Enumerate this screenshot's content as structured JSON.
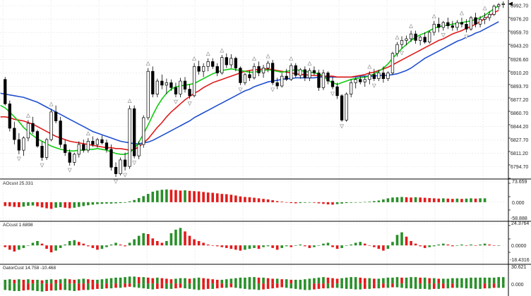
{
  "colors": {
    "background": "#ffffff",
    "grid": "#e3e3e3",
    "border": "#000000",
    "bull_candle": "#ffffff",
    "bear_candle": "#000000",
    "alligator_jaw": "#1f4fcf",
    "alligator_teeth": "#e01b1b",
    "alligator_lips": "#12cc12",
    "hist_up": "#2a8f2a",
    "hist_down": "#e21b1b",
    "fractal_marker": "#9a9a9a",
    "last_price_marker": "#000000"
  },
  "main_pane": {
    "price_ticks": [
      "6992.70",
      "6976.20",
      "6959.70",
      "6943.20",
      "6926.60",
      "6910.20",
      "6893.70",
      "6877.20",
      "6860.70",
      "6844.20",
      "6827.70",
      "6811.20",
      "6794.70"
    ],
    "price_range": [
      6783,
      6998
    ],
    "candles": [
      [
        6902,
        6905,
        6870,
        6872
      ],
      [
        6872,
        6876,
        6838,
        6842
      ],
      [
        6842,
        6850,
        6822,
        6828
      ],
      [
        6828,
        6836,
        6810,
        6815
      ],
      [
        6815,
        6832,
        6808,
        6830
      ],
      [
        6830,
        6852,
        6826,
        6848
      ],
      [
        6848,
        6856,
        6835,
        6838
      ],
      [
        6838,
        6840,
        6818,
        6820
      ],
      [
        6820,
        6826,
        6802,
        6806
      ],
      [
        6806,
        6830,
        6803,
        6828
      ],
      [
        6828,
        6866,
        6826,
        6862
      ],
      [
        6862,
        6870,
        6848,
        6851
      ],
      [
        6851,
        6856,
        6818,
        6822
      ],
      [
        6822,
        6828,
        6808,
        6812
      ],
      [
        6812,
        6816,
        6796,
        6800
      ],
      [
        6800,
        6812,
        6796,
        6810
      ],
      [
        6810,
        6826,
        6806,
        6822
      ],
      [
        6822,
        6828,
        6812,
        6815
      ],
      [
        6815,
        6830,
        6812,
        6826
      ],
      [
        6826,
        6832,
        6819,
        6822
      ],
      [
        6822,
        6830,
        6818,
        6828
      ],
      [
        6828,
        6833,
        6822,
        6824
      ],
      [
        6824,
        6828,
        6812,
        6816
      ],
      [
        6816,
        6822,
        6790,
        6794
      ],
      [
        6794,
        6800,
        6782,
        6786
      ],
      [
        6786,
        6806,
        6784,
        6803
      ],
      [
        6803,
        6812,
        6790,
        6795
      ],
      [
        6795,
        6870,
        6792,
        6866
      ],
      [
        6866,
        6870,
        6805,
        6808
      ],
      [
        6808,
        6826,
        6804,
        6822
      ],
      [
        6822,
        6858,
        6818,
        6855
      ],
      [
        6855,
        6916,
        6852,
        6912
      ],
      [
        6912,
        6918,
        6880,
        6884
      ],
      [
        6884,
        6903,
        6880,
        6900
      ],
      [
        6900,
        6908,
        6890,
        6895
      ],
      [
        6895,
        6903,
        6884,
        6898
      ],
      [
        6898,
        6902,
        6888,
        6892
      ],
      [
        6892,
        6898,
        6880,
        6884
      ],
      [
        6884,
        6904,
        6880,
        6900
      ],
      [
        6900,
        6905,
        6886,
        6890
      ],
      [
        6890,
        6896,
        6878,
        6882
      ],
      [
        6882,
        6922,
        6880,
        6918
      ],
      [
        6918,
        6925,
        6908,
        6912
      ],
      [
        6912,
        6922,
        6905,
        6918
      ],
      [
        6918,
        6928,
        6912,
        6924
      ],
      [
        6924,
        6928,
        6915,
        6918
      ],
      [
        6918,
        6922,
        6906,
        6910
      ],
      [
        6910,
        6932,
        6908,
        6929
      ],
      [
        6929,
        6934,
        6916,
        6920
      ],
      [
        6920,
        6933,
        6916,
        6928
      ],
      [
        6928,
        6930,
        6912,
        6916
      ],
      [
        6916,
        6918,
        6895,
        6898
      ],
      [
        6898,
        6910,
        6895,
        6908
      ],
      [
        6908,
        6913,
        6900,
        6904
      ],
      [
        6904,
        6922,
        6902,
        6918
      ],
      [
        6918,
        6924,
        6906,
        6910
      ],
      [
        6910,
        6920,
        6904,
        6916
      ],
      [
        6916,
        6925,
        6911,
        6922
      ],
      [
        6922,
        6926,
        6895,
        6898
      ],
      [
        6898,
        6904,
        6890,
        6894
      ],
      [
        6894,
        6910,
        6892,
        6906
      ],
      [
        6906,
        6915,
        6900,
        6902
      ],
      [
        6902,
        6922,
        6900,
        6919
      ],
      [
        6919,
        6922,
        6904,
        6907
      ],
      [
        6907,
        6916,
        6903,
        6914
      ],
      [
        6914,
        6918,
        6900,
        6904
      ],
      [
        6904,
        6916,
        6900,
        6913
      ],
      [
        6913,
        6918,
        6907,
        6910
      ],
      [
        6910,
        6914,
        6888,
        6892
      ],
      [
        6892,
        6914,
        6889,
        6910
      ],
      [
        6910,
        6912,
        6896,
        6900
      ],
      [
        6900,
        6905,
        6890,
        6893
      ],
      [
        6893,
        6898,
        6878,
        6882
      ],
      [
        6882,
        6884,
        6850,
        6852
      ],
      [
        6852,
        6886,
        6850,
        6884
      ],
      [
        6884,
        6902,
        6880,
        6898
      ],
      [
        6898,
        6904,
        6891,
        6902
      ],
      [
        6902,
        6906,
        6896,
        6899
      ],
      [
        6899,
        6906,
        6893,
        6902
      ],
      [
        6902,
        6912,
        6896,
        6908
      ],
      [
        6908,
        6915,
        6900,
        6903
      ],
      [
        6903,
        6914,
        6900,
        6910
      ],
      [
        6910,
        6918,
        6898,
        6903
      ],
      [
        6903,
        6912,
        6900,
        6910
      ],
      [
        6910,
        6936,
        6908,
        6934
      ],
      [
        6934,
        6948,
        6930,
        6945
      ],
      [
        6945,
        6955,
        6940,
        6950
      ],
      [
        6950,
        6956,
        6944,
        6952
      ],
      [
        6952,
        6962,
        6948,
        6958
      ],
      [
        6958,
        6962,
        6946,
        6950
      ],
      [
        6950,
        6956,
        6944,
        6954
      ],
      [
        6954,
        6960,
        6946,
        6948
      ],
      [
        6948,
        6962,
        6946,
        6960
      ],
      [
        6960,
        6974,
        6956,
        6970
      ],
      [
        6970,
        6978,
        6960,
        6966
      ],
      [
        6966,
        6974,
        6962,
        6972
      ],
      [
        6972,
        6978,
        6964,
        6968
      ],
      [
        6968,
        6974,
        6962,
        6966
      ],
      [
        6966,
        6975,
        6962,
        6972
      ],
      [
        6972,
        6978,
        6966,
        6970
      ],
      [
        6970,
        6976,
        6960,
        6964
      ],
      [
        6964,
        6980,
        6962,
        6978
      ],
      [
        6978,
        6984,
        6966,
        6970
      ],
      [
        6970,
        6980,
        6966,
        6976
      ],
      [
        6976,
        6984,
        6970,
        6978
      ],
      [
        6978,
        6986,
        6974,
        6982
      ],
      [
        6982,
        6994,
        6980,
        6992
      ],
      [
        6992,
        6996,
        6988,
        6994
      ],
      [
        6994,
        6998,
        6990,
        6995
      ]
    ],
    "alligator": {
      "jaw": [
        6885,
        6884,
        6883,
        6882,
        6881,
        6880,
        6878,
        6876,
        6874,
        6871,
        6868,
        6865,
        6862,
        6859,
        6856,
        6853,
        6850,
        6847,
        6844,
        6841,
        6838,
        6836,
        6834,
        6832,
        6830,
        6828,
        6826,
        6825,
        6824,
        6823,
        6823,
        6824,
        6825,
        6827,
        6830,
        6833,
        6836,
        6839,
        6842,
        6845,
        6848,
        6851,
        6855,
        6858,
        6861,
        6864,
        6867,
        6870,
        6873,
        6876,
        6879,
        6882,
        6885,
        6888,
        6890,
        6893,
        6895,
        6897,
        6899,
        6900,
        6901,
        6902,
        6903,
        6903,
        6904,
        6904,
        6904,
        6904,
        6904,
        6905,
        6905,
        6905,
        6905,
        6905,
        6905,
        6905,
        6905,
        6905,
        6906,
        6906,
        6906,
        6906,
        6907,
        6907,
        6907,
        6908,
        6909,
        6911,
        6913,
        6916,
        6920,
        6924,
        6928,
        6931,
        6934,
        6937,
        6940,
        6943,
        6946,
        6949,
        6951,
        6954,
        6956,
        6959,
        6961,
        6964,
        6967,
        6970,
        6973
      ],
      "teeth": [
        6856,
        6856,
        6855,
        6853,
        6852,
        6851,
        6849,
        6847,
        6844,
        6841,
        6838,
        6835,
        6832,
        6830,
        6828,
        6826,
        6825,
        6824,
        6823,
        6822,
        6821,
        6820,
        6819,
        6818,
        6818,
        6817,
        6817,
        6816,
        6815,
        6816,
        6819,
        6824,
        6829,
        6836,
        6843,
        6849,
        6856,
        6862,
        6867,
        6872,
        6877,
        6881,
        6885,
        6888,
        6892,
        6895,
        6898,
        6900,
        6902,
        6904,
        6906,
        6908,
        6910,
        6912,
        6913,
        6914,
        6914,
        6915,
        6915,
        6914,
        6913,
        6912,
        6911,
        6910,
        6909,
        6908,
        6908,
        6907,
        6907,
        6907,
        6906,
        6906,
        6906,
        6905,
        6905,
        6905,
        6905,
        6906,
        6907,
        6908,
        6910,
        6911,
        6913,
        6915,
        6917,
        6920,
        6923,
        6926,
        6929,
        6932,
        6935,
        6938,
        6941,
        6944,
        6947,
        6950,
        6952,
        6955,
        6958,
        6960,
        6962,
        6965,
        6967,
        6970,
        6973,
        6977,
        6980,
        6984,
        6987
      ],
      "lips": [
        6870,
        6867,
        6862,
        6856,
        6850,
        6843,
        6838,
        6833,
        6829,
        6826,
        6823,
        6820,
        6818,
        6816,
        6815,
        6814,
        6814,
        6815,
        6815,
        6816,
        6816,
        6817,
        6816,
        6815,
        6813,
        6811,
        6810,
        6810,
        6812,
        6817,
        6825,
        6835,
        6846,
        6858,
        6869,
        6878,
        6885,
        6890,
        6893,
        6894,
        6895,
        6896,
        6897,
        6900,
        6903,
        6906,
        6909,
        6911,
        6913,
        6914,
        6915,
        6914,
        6913,
        6912,
        6911,
        6911,
        6912,
        6913,
        6914,
        6913,
        6912,
        6911,
        6912,
        6913,
        6914,
        6913,
        6912,
        6911,
        6910,
        6909,
        6906,
        6901,
        6898,
        6896,
        6898,
        6900,
        6902,
        6903,
        6904,
        6905,
        6906,
        6909,
        6912,
        6916,
        6921,
        6928,
        6934,
        6940,
        6945,
        6950,
        6954,
        6957,
        6959,
        6962,
        6965,
        6967,
        6968,
        6969,
        6970,
        6971,
        6972,
        6973,
        6974,
        6976,
        6978,
        6981,
        6985,
        6989,
        6993
      ],
      "shift_bars": 3
    },
    "fractals_up_at": [
      5,
      10,
      18,
      27,
      31,
      41,
      44,
      47,
      54,
      57,
      62,
      66,
      79,
      85,
      88,
      93,
      99,
      104
    ],
    "fractals_down_at": [
      3,
      8,
      14,
      24,
      26,
      28,
      37,
      40,
      51,
      58,
      71,
      73,
      80,
      86,
      95,
      100
    ]
  },
  "pane1": {
    "label": "AOcust 25.331",
    "ticks": [
      "73.659",
      "0.000",
      "-58.888"
    ],
    "range": [
      -58.888,
      73.659
    ],
    "values": [
      -14,
      -15,
      -17,
      -18,
      -16,
      -13,
      -12,
      -15,
      -19,
      -22,
      -24,
      -20,
      -18,
      -20,
      -22,
      -20,
      -17,
      -14,
      -11,
      -9,
      -7,
      -6,
      -5,
      -5,
      -4,
      -3,
      -2,
      3,
      8,
      15,
      22,
      30,
      38,
      42,
      45,
      46,
      45,
      44,
      42,
      43,
      41,
      40,
      39,
      37,
      35,
      34,
      32,
      30,
      29,
      27,
      24,
      21,
      19,
      18,
      16,
      14,
      12,
      10,
      7,
      4,
      2,
      -1,
      -3,
      -4,
      -3,
      -2,
      -1,
      -2,
      -4,
      -6,
      -8,
      -9,
      -7,
      -5,
      -3,
      -2,
      -1,
      0,
      1,
      2,
      4,
      6,
      10,
      14,
      17,
      18,
      19,
      18,
      17,
      18,
      17,
      16,
      15,
      14,
      13,
      14,
      13,
      12,
      13,
      12,
      13,
      14,
      13,
      14,
      14
    ]
  },
  "pane2": {
    "label": "ACcust 1.6898",
    "ticks": [
      "24.3764",
      "0.0000",
      "-18.4316"
    ],
    "range": [
      -18.4316,
      24.3764
    ],
    "values": [
      -2,
      -5,
      -7,
      -5,
      -3,
      0,
      3,
      5,
      2,
      -4,
      -8,
      -6,
      -3,
      1,
      5,
      6,
      4,
      2,
      -1,
      -3,
      -5,
      -4,
      -2,
      1,
      3,
      1,
      -1,
      3,
      7,
      11,
      14,
      13,
      8,
      5,
      3,
      5,
      14,
      18,
      20,
      16,
      11,
      7,
      5,
      3,
      1,
      0,
      -1,
      -2,
      -3,
      -4,
      -5,
      -6,
      -5,
      -4,
      -3,
      -4,
      -2,
      -1,
      -3,
      -5,
      -3,
      -1,
      -2,
      0,
      1,
      -1,
      -3,
      -2,
      0,
      2,
      3,
      -2,
      -4,
      -3,
      0,
      1,
      3,
      4,
      2,
      0,
      -2,
      -4,
      -6,
      -4,
      4,
      12,
      15,
      10,
      5,
      2,
      -1,
      -3,
      -2,
      -1,
      1,
      2,
      1,
      -1,
      0,
      1,
      0,
      1,
      0,
      1,
      2,
      1,
      0,
      0
    ]
  },
  "pane3": {
    "label": "GatorCust 14.758 -10.468",
    "ticks": [
      "30.621",
      "0.000"
    ],
    "range": [
      -18,
      30.621
    ],
    "up": [
      7,
      8,
      7,
      8,
      7,
      8,
      7,
      7,
      6,
      7,
      8,
      7,
      8,
      9,
      8,
      7,
      8,
      9,
      8,
      7,
      7,
      8,
      9,
      10,
      11,
      11,
      12,
      13,
      13,
      12,
      12,
      11,
      10,
      11,
      10,
      9,
      8,
      9,
      10,
      10,
      9,
      10,
      11,
      10,
      9,
      8,
      7,
      7,
      8,
      9,
      10,
      11,
      11,
      12,
      12,
      11,
      11,
      10,
      9,
      9,
      8,
      8,
      7,
      7,
      7,
      8,
      9,
      10,
      11,
      12,
      11,
      10,
      9,
      10,
      11,
      12,
      12,
      11,
      10,
      10,
      9,
      9,
      10,
      11,
      11,
      12,
      11,
      11,
      12,
      12,
      11,
      11,
      10,
      10,
      9,
      9,
      9,
      10,
      10,
      10,
      10,
      11,
      11,
      11,
      11,
      11,
      11,
      12,
      12
    ],
    "down": [
      -12,
      -13,
      -14,
      -14,
      -13,
      -12,
      -13,
      -14,
      -15,
      -14,
      -13,
      -13,
      -12,
      -12,
      -13,
      -14,
      -13,
      -12,
      -12,
      -11,
      -10,
      -10,
      -9,
      -9,
      -8,
      -8,
      -7,
      -6,
      -7,
      -8,
      -9,
      -10,
      -11,
      -10,
      -9,
      -10,
      -10,
      -9,
      -8,
      -9,
      -10,
      -11,
      -12,
      -11,
      -10,
      -10,
      -9,
      -8,
      -8,
      -7,
      -8,
      -9,
      -10,
      -11,
      -11,
      -12,
      -11,
      -10,
      -9,
      -8,
      -7,
      -8,
      -9,
      -10,
      -11,
      -12,
      -12,
      -11,
      -10,
      -9,
      -9,
      -8,
      -8,
      -9,
      -10,
      -10,
      -11,
      -11,
      -10,
      -10,
      -9,
      -9,
      -8,
      -8,
      -7,
      -7,
      -8,
      -9,
      -9,
      -10,
      -10,
      -10,
      -11,
      -10,
      -10,
      -9,
      -9,
      -8,
      -8,
      -8,
      -9,
      -9,
      -10,
      -10,
      -9,
      -9,
      -8,
      -8,
      -8
    ]
  }
}
